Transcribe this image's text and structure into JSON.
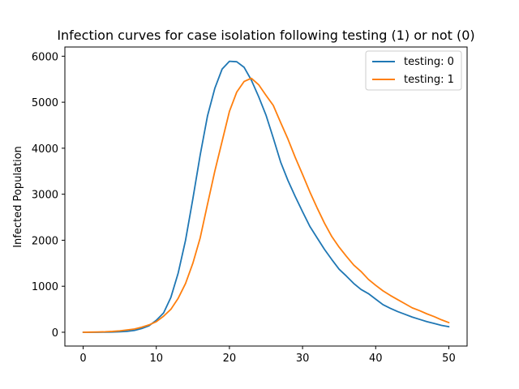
{
  "chart_data": {
    "type": "line",
    "title": "Infection curves for case isolation following testing (1) or not (0)",
    "xlabel": "",
    "ylabel": "Infected Population",
    "xlim": [
      -2.5,
      52.5
    ],
    "ylim": [
      -300,
      6200
    ],
    "xticks": [
      0,
      10,
      20,
      30,
      40,
      50
    ],
    "yticks": [
      0,
      1000,
      2000,
      3000,
      4000,
      5000,
      6000
    ],
    "grid": false,
    "legend_position": "top-right",
    "series": [
      {
        "name": "testing: 0",
        "color": "#1f77b4",
        "x": [
          0,
          1,
          2,
          3,
          4,
          5,
          6,
          7,
          8,
          9,
          10,
          11,
          12,
          13,
          14,
          15,
          16,
          17,
          18,
          19,
          20,
          21,
          22,
          23,
          24,
          25,
          26,
          27,
          28,
          29,
          30,
          31,
          32,
          33,
          34,
          35,
          36,
          37,
          38,
          39,
          40,
          41,
          42,
          43,
          44,
          45,
          46,
          47,
          48,
          49,
          50
        ],
        "y": [
          0,
          0,
          0,
          2,
          5,
          10,
          20,
          40,
          80,
          140,
          260,
          420,
          760,
          1290,
          2000,
          2900,
          3850,
          4700,
          5300,
          5720,
          5890,
          5880,
          5760,
          5480,
          5120,
          4720,
          4220,
          3700,
          3300,
          2950,
          2620,
          2300,
          2050,
          1800,
          1580,
          1370,
          1220,
          1060,
          930,
          840,
          720,
          600,
          520,
          450,
          390,
          330,
          280,
          230,
          190,
          150,
          120
        ]
      },
      {
        "name": "testing: 1",
        "color": "#ff7f0e",
        "x": [
          0,
          1,
          2,
          3,
          4,
          5,
          6,
          7,
          8,
          9,
          10,
          11,
          12,
          13,
          14,
          15,
          16,
          17,
          18,
          19,
          20,
          21,
          22,
          23,
          24,
          25,
          26,
          27,
          28,
          29,
          30,
          31,
          32,
          33,
          34,
          35,
          36,
          37,
          38,
          39,
          40,
          41,
          42,
          43,
          44,
          45,
          46,
          47,
          48,
          49,
          50
        ],
        "y": [
          0,
          3,
          6,
          10,
          18,
          30,
          50,
          70,
          110,
          160,
          230,
          350,
          500,
          740,
          1060,
          1500,
          2050,
          2780,
          3500,
          4150,
          4800,
          5220,
          5450,
          5520,
          5380,
          5150,
          4930,
          4560,
          4200,
          3800,
          3430,
          3050,
          2700,
          2370,
          2080,
          1850,
          1650,
          1460,
          1320,
          1150,
          1020,
          900,
          800,
          710,
          620,
          530,
          470,
          400,
          340,
          270,
          210
        ]
      }
    ]
  }
}
